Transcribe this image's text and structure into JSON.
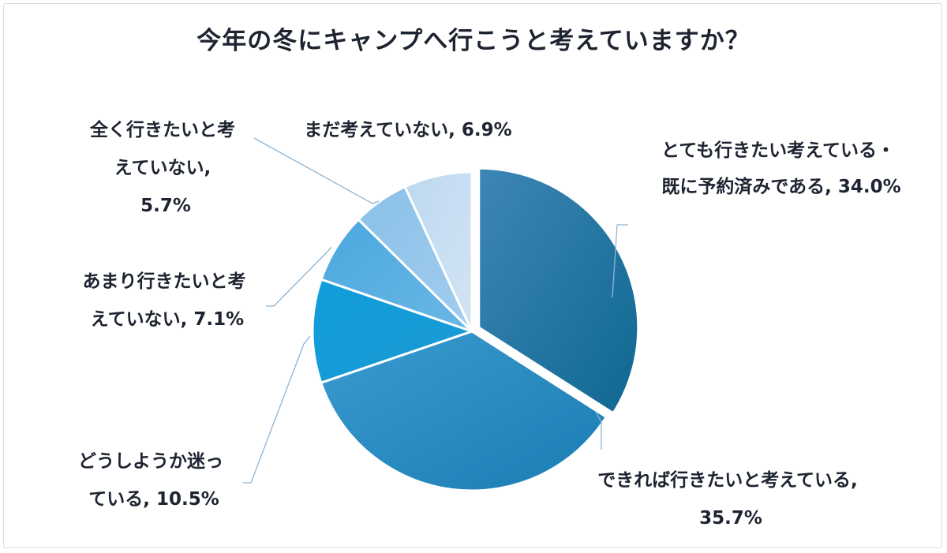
{
  "chart_data": {
    "type": "pie",
    "title": "今年の冬にキャンプへ行こうと考えていますか？",
    "slices": [
      {
        "label": "とても行きたい考えている・既に予約済みである",
        "value": 34.0,
        "color": "#1f6e9c"
      },
      {
        "label": "できれば行きたいと考えている",
        "value": 35.7,
        "color": "#2a8fc4"
      },
      {
        "label": "どうしようか迷っている",
        "value": 10.5,
        "color": "#14a0d8"
      },
      {
        "label": "あまり行きたいと考えていない",
        "value": 7.1,
        "color": "#58aee0"
      },
      {
        "label": "全く行きたいと考えていない",
        "value": 5.7,
        "color": "#93c6ea"
      },
      {
        "label": "まだ考えていない",
        "value": 6.9,
        "color": "#c5dcf0"
      }
    ],
    "labels": [
      [
        "とても行きたい考えている・",
        "既に予約済みである, 34.0%"
      ],
      [
        "できれば行きたいと考えている,",
        "35.7%"
      ],
      [
        "どうしようか迷っ",
        "ている, 10.5%"
      ],
      [
        "あまり行きたいと考",
        "えていない, 7.1%"
      ],
      [
        "全く行きたいと考",
        "えていない,",
        "5.7%"
      ],
      [
        "まだ考えていない, 6.9%"
      ]
    ]
  }
}
